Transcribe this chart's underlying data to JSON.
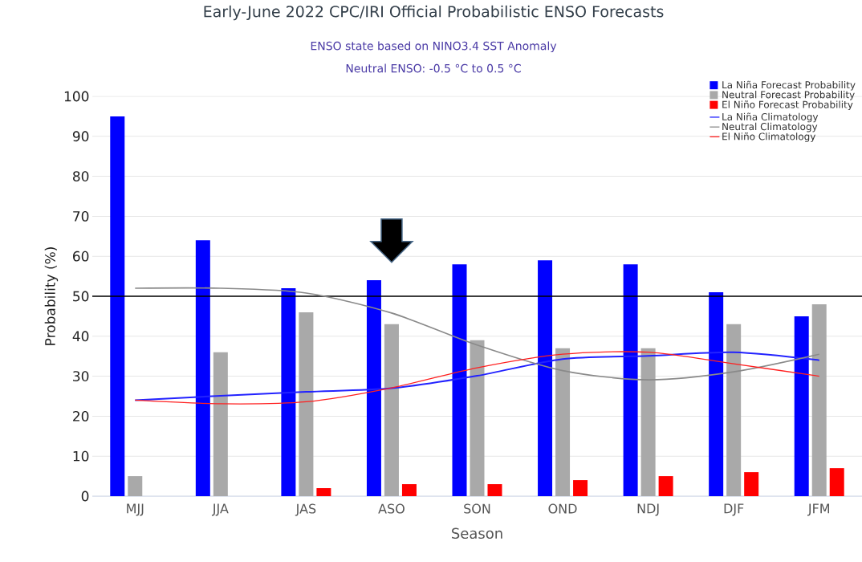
{
  "chart_data": {
    "type": "bar",
    "title": "Early-June 2022 CPC/IRI Official Probabilistic ENSO Forecasts",
    "subtitle": "ENSO state based on NINO3.4 SST Anomaly Neutral ENSO: -0.5 °C to 0.5 °C",
    "xlabel": "Season",
    "ylabel": "Probability (%)",
    "categories": [
      "MJJ",
      "JJA",
      "JAS",
      "ASO",
      "SON",
      "OND",
      "NDJ",
      "DJF",
      "JFM"
    ],
    "series": [
      {
        "name": "La Niña Forecast Probability",
        "color": "#0000ff",
        "values": [
          95,
          64,
          52,
          54,
          58,
          59,
          58,
          51,
          45
        ]
      },
      {
        "name": "Neutral Forecast Probability",
        "color": "#a9a9a9",
        "values": [
          5,
          36,
          46,
          43,
          39,
          37,
          37,
          43,
          48
        ]
      },
      {
        "name": "El Niño Forecast Probability",
        "color": "#ff0000",
        "values": [
          0,
          0,
          2,
          3,
          3,
          4,
          5,
          6,
          7
        ]
      },
      {
        "name": "La Niña Climatology",
        "type": "line",
        "color": "#2222ff",
        "values": [
          24,
          25.1,
          26.1,
          27,
          30.1,
          34.3,
          35.1,
          36,
          34
        ]
      },
      {
        "name": "Neutral Climatology",
        "type": "line",
        "color": "#8a8a8a",
        "values": [
          52,
          52,
          50.8,
          45.8,
          37.8,
          31.4,
          29.1,
          31.1,
          35.5
        ]
      },
      {
        "name": "El Niño Climatology",
        "type": "line",
        "color": "#ff2020",
        "values": [
          24,
          23.1,
          23.6,
          27.1,
          32.1,
          35.5,
          36,
          33.1,
          30
        ]
      }
    ],
    "ylim": [
      0,
      100
    ],
    "yticks": [
      0,
      10,
      20,
      30,
      40,
      50,
      60,
      70,
      80,
      90,
      100
    ],
    "grid": "y",
    "legend": "top right",
    "ref_lines": [
      {
        "axis": "y",
        "value": 50,
        "color": "#000000"
      }
    ]
  }
}
